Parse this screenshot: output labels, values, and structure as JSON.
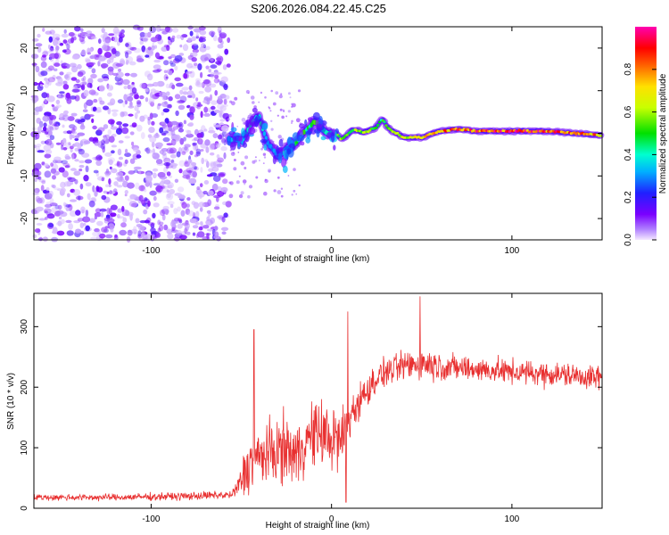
{
  "title": "S206.2026.084.22.45.C25",
  "chart_data": [
    {
      "type": "heatmap",
      "title": "S206.2026.084.22.45.C25",
      "xlabel": "Height of straight line (km)",
      "ylabel": "Frequency (Hz)",
      "xlim": [
        -165,
        150
      ],
      "ylim": [
        -25,
        25
      ],
      "xticks": [
        -100,
        0,
        100
      ],
      "yticks": [
        -20,
        -10,
        0,
        10,
        20
      ],
      "colorbar": {
        "label": "Normalized spectral amplitude",
        "range": [
          0,
          1
        ],
        "ticks": [
          0.0,
          0.2,
          0.4,
          0.6,
          0.8
        ],
        "colormap": "rainbow (purple → blue → cyan → green → yellow → red → magenta)"
      },
      "noise_region_x": [
        -165,
        -57
      ],
      "signal_track": {
        "x": [
          -57,
          -50,
          -45,
          -40,
          -35,
          -30,
          -25,
          -20,
          -15,
          -10,
          -5,
          0,
          5,
          10,
          15,
          20,
          25,
          28,
          32,
          40,
          50,
          60,
          70,
          80,
          100,
          120,
          150
        ],
        "freq": [
          -1,
          -2,
          2,
          4,
          -3,
          -5,
          -4,
          -2,
          0,
          3,
          1,
          0,
          -1,
          0,
          1,
          0,
          2,
          3,
          1,
          -1,
          -1,
          0.5,
          1,
          0.5,
          0.5,
          0.5,
          -0.5
        ],
        "amp": [
          0.35,
          0.4,
          0.45,
          0.5,
          0.3,
          0.35,
          0.4,
          0.45,
          0.5,
          0.55,
          0.5,
          0.5,
          0.6,
          0.55,
          0.65,
          0.6,
          0.55,
          0.5,
          0.6,
          0.7,
          0.8,
          0.85,
          0.9,
          0.9,
          0.95,
          0.9,
          0.8
        ]
      }
    },
    {
      "type": "line",
      "xlabel": "Height of straight line (km)",
      "ylabel": "SNR (10 * v/v)",
      "xlim": [
        -165,
        150
      ],
      "ylim": [
        0,
        355
      ],
      "xticks": [
        -100,
        0,
        100
      ],
      "yticks": [
        0,
        100,
        200,
        300
      ],
      "color": "#e83030",
      "series": [
        {
          "name": "SNR",
          "x": [
            -165,
            -120,
            -80,
            -55,
            -50,
            -48,
            -45,
            -40,
            -35,
            -30,
            -25,
            -20,
            -15,
            -10,
            -5,
            0,
            5,
            10,
            15,
            20,
            25,
            30,
            40,
            50,
            60,
            70,
            80,
            100,
            120,
            140,
            150
          ],
          "mean": [
            18,
            18,
            20,
            22,
            45,
            60,
            75,
            85,
            90,
            95,
            100,
            85,
            110,
            120,
            125,
            115,
            110,
            150,
            175,
            195,
            215,
            225,
            235,
            240,
            235,
            232,
            230,
            225,
            222,
            218,
            215
          ],
          "spread": [
            8,
            8,
            10,
            10,
            40,
            60,
            70,
            70,
            75,
            80,
            80,
            75,
            80,
            80,
            80,
            85,
            80,
            60,
            45,
            40,
            35,
            35,
            35,
            40,
            35,
            32,
            30,
            30,
            30,
            30,
            30
          ],
          "peaks": [
            {
              "x": -43,
              "y": 295
            },
            {
              "x": 9,
              "y": 325
            },
            {
              "x": 49,
              "y": 350
            },
            {
              "x": 8,
              "y": 10
            }
          ]
        }
      ]
    }
  ]
}
